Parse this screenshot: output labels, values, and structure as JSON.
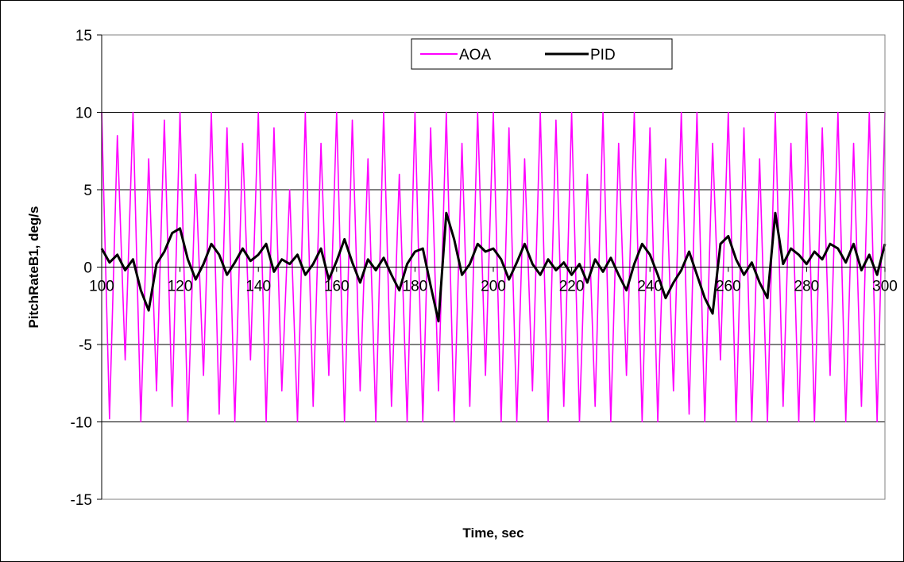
{
  "chart_data": {
    "type": "line",
    "title": "",
    "xlabel": "Time, sec",
    "ylabel": "PitchRateB1, deg/s",
    "xlim": [
      100,
      300
    ],
    "ylim": [
      -15,
      15
    ],
    "x_ticks": [
      100,
      120,
      140,
      160,
      180,
      200,
      220,
      240,
      260,
      280,
      300
    ],
    "y_ticks": [
      -15,
      -10,
      -5,
      0,
      5,
      10,
      15
    ],
    "x_tick_labels": [
      "100",
      "120",
      "140",
      "160",
      "180",
      "200",
      "220",
      "240",
      "260",
      "280",
      "300"
    ],
    "y_tick_labels": [
      "-15",
      "-10",
      "-5",
      "0",
      "5",
      "10",
      "15"
    ],
    "grid": "horizontal",
    "legend_position": "top-center",
    "series": [
      {
        "name": "AOA",
        "color": "#ff00ff",
        "x": [
          100,
          102,
          104,
          106,
          108,
          110,
          112,
          114,
          116,
          118,
          120,
          122,
          124,
          126,
          128,
          130,
          132,
          134,
          136,
          138,
          140,
          142,
          144,
          146,
          148,
          150,
          152,
          154,
          156,
          158,
          160,
          162,
          164,
          166,
          168,
          170,
          172,
          174,
          176,
          178,
          180,
          182,
          184,
          186,
          188,
          190,
          192,
          194,
          196,
          198,
          200,
          202,
          204,
          206,
          208,
          210,
          212,
          214,
          216,
          218,
          220,
          222,
          224,
          226,
          228,
          230,
          232,
          234,
          236,
          238,
          240,
          242,
          244,
          246,
          248,
          250,
          252,
          254,
          256,
          258,
          260,
          262,
          264,
          266,
          268,
          270,
          272,
          274,
          276,
          278,
          280,
          282,
          284,
          286,
          288,
          290,
          292,
          294,
          296,
          298,
          300
        ],
        "values": [
          10,
          -9.8,
          8.5,
          -6,
          10,
          -10,
          7,
          -8,
          9.5,
          -9,
          10,
          -10,
          6,
          -7,
          10,
          -9.5,
          9,
          -10,
          8,
          -6,
          10,
          -10,
          9,
          -8,
          5,
          -10,
          10,
          -9,
          8,
          -7,
          10,
          -10,
          9.5,
          -8,
          7,
          -10,
          10,
          -9,
          6,
          -10,
          10,
          -10,
          9,
          -8,
          10,
          -10,
          8,
          -9,
          10,
          -7,
          10,
          -10,
          9,
          -10,
          7,
          -8,
          10,
          -10,
          9.5,
          -9,
          10,
          -10,
          6,
          -9,
          10,
          -10,
          8,
          -7,
          10,
          -10,
          9,
          -10,
          7,
          -8,
          10,
          -9.5,
          10,
          -10,
          8,
          -6,
          10,
          -10,
          9,
          -10,
          7,
          -10,
          10,
          -9,
          8,
          -10,
          10,
          -10,
          9,
          -7,
          10,
          -10,
          8,
          -9,
          10,
          -10,
          10
        ]
      },
      {
        "name": "PID",
        "color": "#000000",
        "x": [
          100,
          102,
          104,
          106,
          108,
          110,
          112,
          114,
          116,
          118,
          120,
          122,
          124,
          126,
          128,
          130,
          132,
          134,
          136,
          138,
          140,
          142,
          144,
          146,
          148,
          150,
          152,
          154,
          156,
          158,
          160,
          162,
          164,
          166,
          168,
          170,
          172,
          174,
          176,
          178,
          180,
          182,
          184,
          186,
          188,
          190,
          192,
          194,
          196,
          198,
          200,
          202,
          204,
          206,
          208,
          210,
          212,
          214,
          216,
          218,
          220,
          222,
          224,
          226,
          228,
          230,
          232,
          234,
          236,
          238,
          240,
          242,
          244,
          246,
          248,
          250,
          252,
          254,
          256,
          258,
          260,
          262,
          264,
          266,
          268,
          270,
          272,
          274,
          276,
          278,
          280,
          282,
          284,
          286,
          288,
          290,
          292,
          294,
          296,
          298,
          300
        ],
        "values": [
          1.2,
          0.3,
          0.8,
          -0.2,
          0.5,
          -1.5,
          -2.8,
          0.2,
          1.0,
          2.2,
          2.5,
          0.5,
          -0.8,
          0.2,
          1.5,
          0.8,
          -0.5,
          0.3,
          1.2,
          0.4,
          0.8,
          1.5,
          -0.3,
          0.5,
          0.2,
          0.8,
          -0.5,
          0.2,
          1.2,
          -0.8,
          0.4,
          1.8,
          0.3,
          -1.0,
          0.5,
          -0.2,
          0.6,
          -0.5,
          -1.5,
          0.2,
          1.0,
          1.2,
          -1.2,
          -3.5,
          3.5,
          1.8,
          -0.5,
          0.2,
          1.5,
          1.0,
          1.2,
          0.5,
          -0.8,
          0.3,
          1.5,
          0.2,
          -0.5,
          0.5,
          -0.2,
          0.3,
          -0.5,
          0.2,
          -1.0,
          0.5,
          -0.3,
          0.6,
          -0.5,
          -1.5,
          0.2,
          1.5,
          0.8,
          -0.5,
          -2.0,
          -1.0,
          -0.2,
          1.0,
          -0.5,
          -2.0,
          -3.0,
          1.5,
          2.0,
          0.5,
          -0.5,
          0.3,
          -1.0,
          -2.0,
          3.5,
          0.2,
          1.2,
          0.8,
          0.2,
          1.0,
          0.5,
          1.5,
          1.2,
          0.3,
          1.5,
          -0.2,
          0.8,
          -0.5,
          1.5
        ]
      }
    ]
  }
}
